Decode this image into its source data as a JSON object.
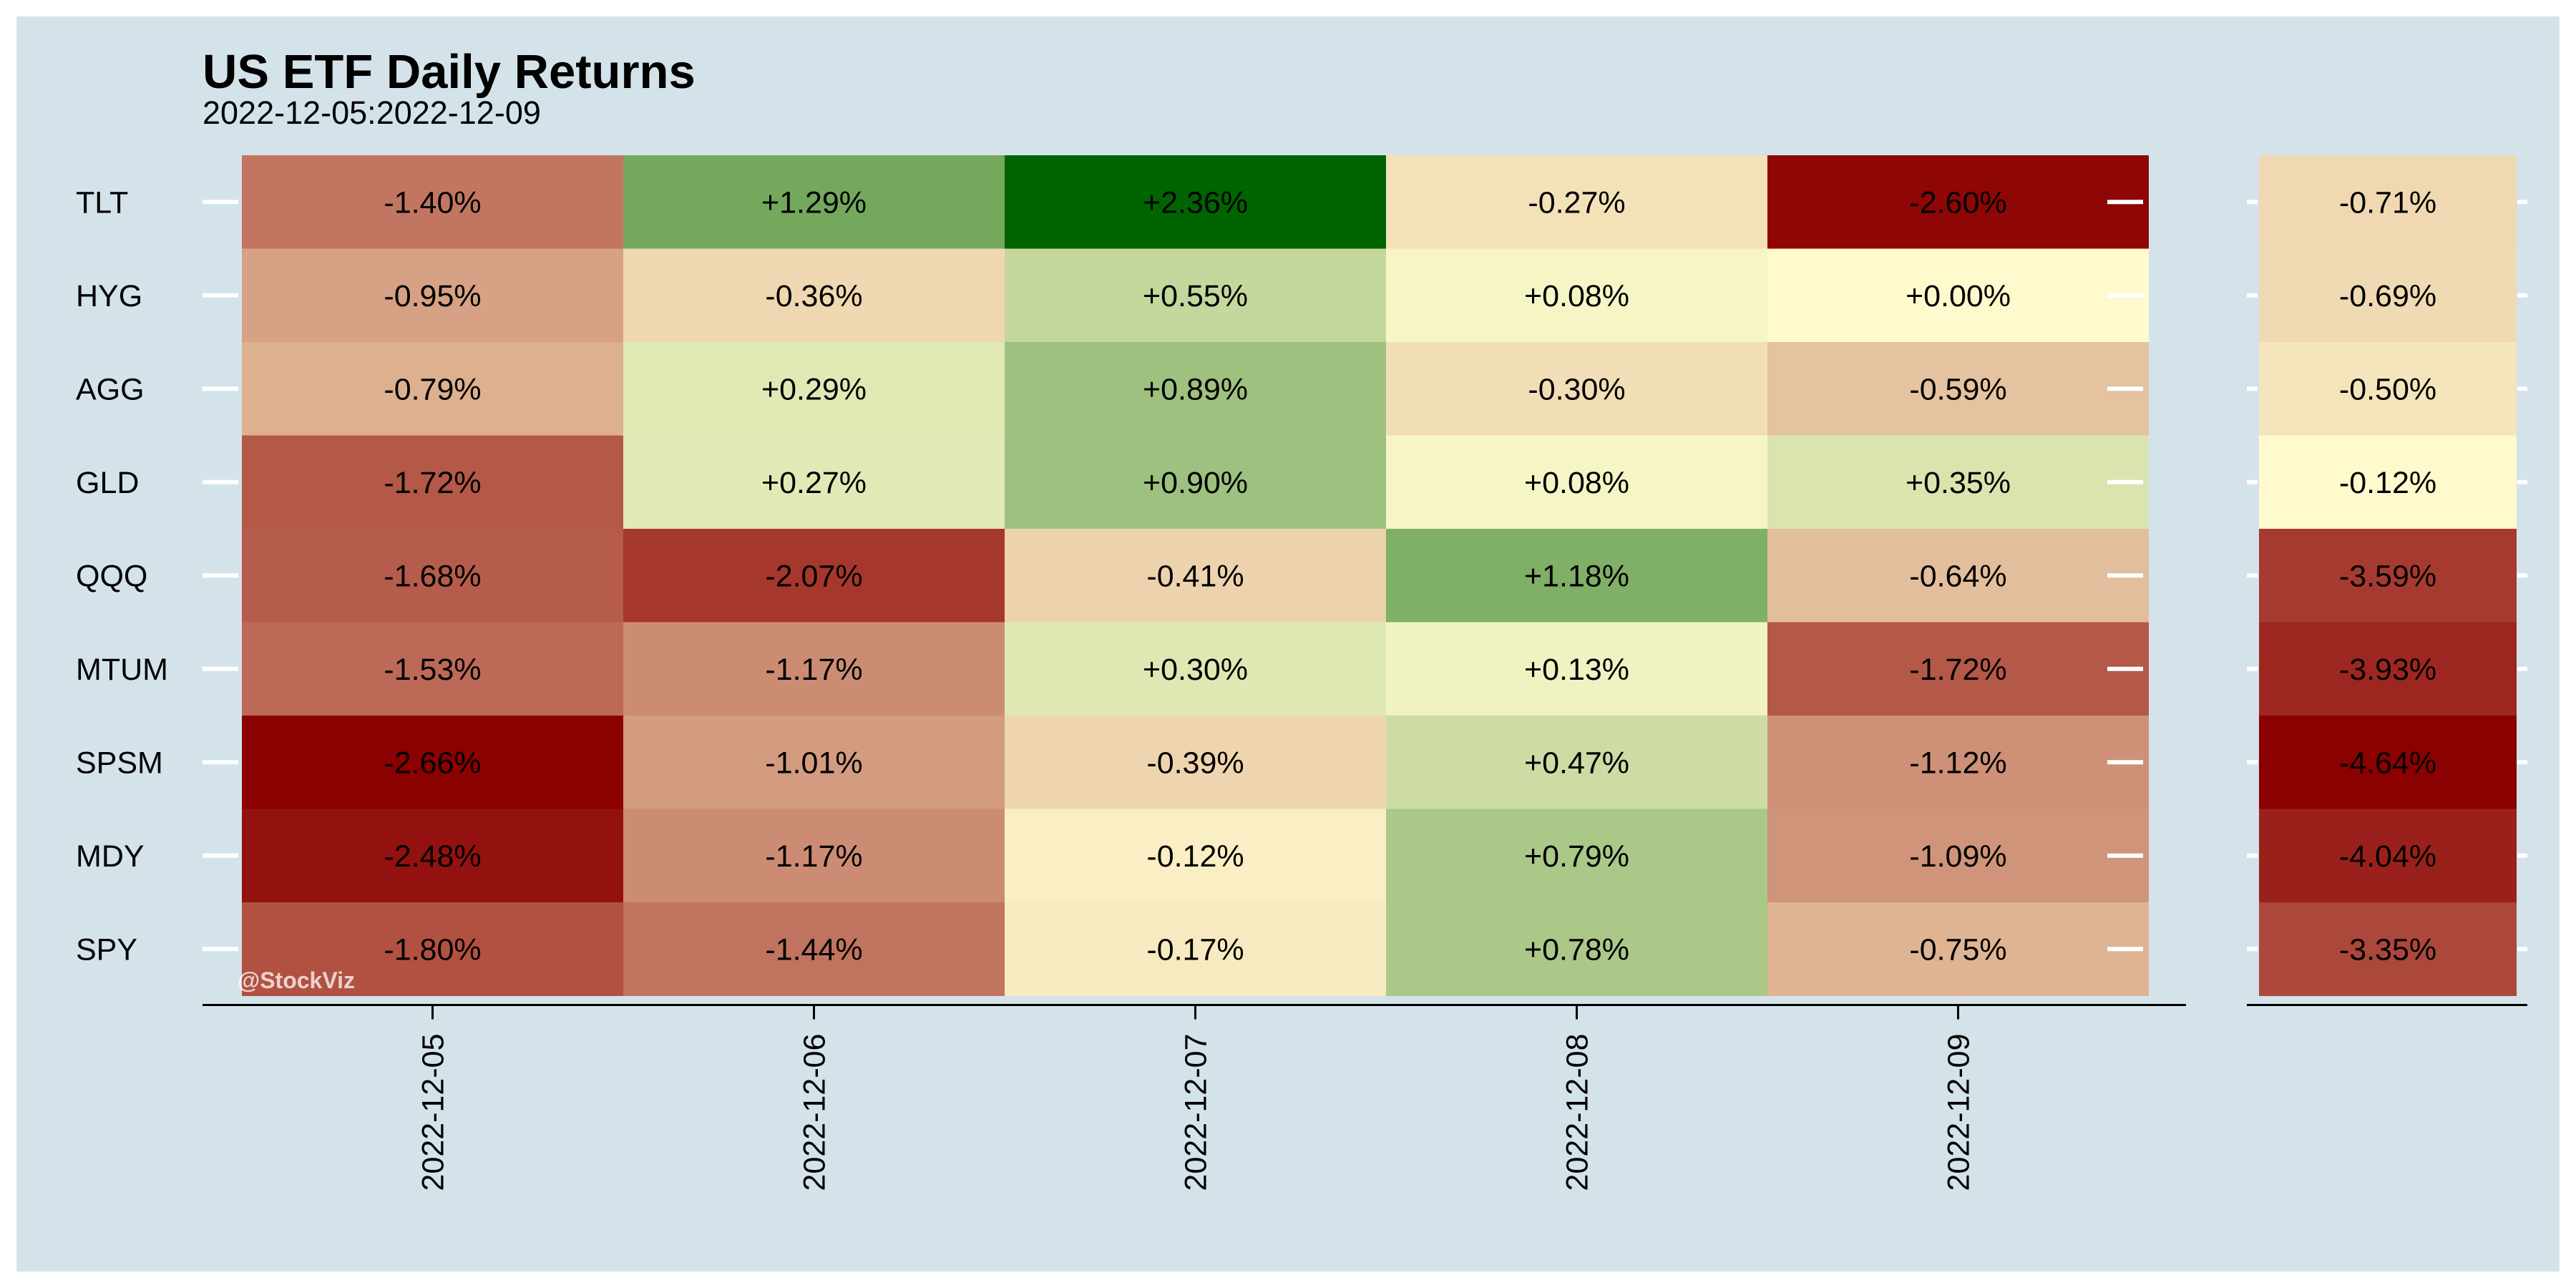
{
  "title": "US ETF Daily Returns",
  "subtitle": "2022-12-05:2022-12-09",
  "watermark": "@StockViz",
  "colors": {
    "background": "#d4e3ea",
    "negative_extreme": "#8b0000",
    "neutral": "#fffacd",
    "positive_extreme": "#006400",
    "axis": "#000000",
    "tick": "#ffffff"
  },
  "chart_data": [
    {
      "type": "heatmap",
      "title": "US ETF Daily Returns",
      "subtitle": "2022-12-05:2022-12-09",
      "xlabel": "",
      "ylabel": "",
      "x": [
        "2022-12-05",
        "2022-12-06",
        "2022-12-07",
        "2022-12-08",
        "2022-12-09"
      ],
      "y": [
        "TLT",
        "HYG",
        "AGG",
        "GLD",
        "QQQ",
        "MTUM",
        "SPSM",
        "MDY",
        "SPY"
      ],
      "values": [
        [
          -1.4,
          1.29,
          2.36,
          -0.27,
          -2.6
        ],
        [
          -0.95,
          -0.36,
          0.55,
          0.08,
          0.0
        ],
        [
          -0.79,
          0.29,
          0.89,
          -0.3,
          -0.59
        ],
        [
          -1.72,
          0.27,
          0.9,
          0.08,
          0.35
        ],
        [
          -1.68,
          -2.07,
          -0.41,
          1.18,
          -0.64
        ],
        [
          -1.53,
          -1.17,
          0.3,
          0.13,
          -1.72
        ],
        [
          -2.66,
          -1.01,
          -0.39,
          0.47,
          -1.12
        ],
        [
          -2.48,
          -1.17,
          -0.12,
          0.79,
          -1.09
        ],
        [
          -1.8,
          -1.44,
          -0.17,
          0.78,
          -0.75
        ]
      ],
      "labels": [
        [
          "-1.40%",
          "+1.29%",
          "+2.36%",
          "-0.27%",
          "-2.60%"
        ],
        [
          "-0.95%",
          "-0.36%",
          "+0.55%",
          "+0.08%",
          "+0.00%"
        ],
        [
          "-0.79%",
          "+0.29%",
          "+0.89%",
          "-0.30%",
          "-0.59%"
        ],
        [
          "-1.72%",
          "+0.27%",
          "+0.90%",
          "+0.08%",
          "+0.35%"
        ],
        [
          "-1.68%",
          "-2.07%",
          "-0.41%",
          "+1.18%",
          "-0.64%"
        ],
        [
          "-1.53%",
          "-1.17%",
          "+0.30%",
          "+0.13%",
          "-1.72%"
        ],
        [
          "-2.66%",
          "-1.01%",
          "-0.39%",
          "+0.47%",
          "-1.12%"
        ],
        [
          "-2.48%",
          "-1.17%",
          "-0.12%",
          "+0.79%",
          "-1.09%"
        ],
        [
          "-1.80%",
          "-1.44%",
          "-0.17%",
          "+0.78%",
          "-0.75%"
        ]
      ],
      "color_range": [
        -2.66,
        2.36
      ],
      "legend": "none"
    },
    {
      "type": "heatmap",
      "x": [],
      "y": [
        "TLT",
        "HYG",
        "AGG",
        "GLD",
        "QQQ",
        "MTUM",
        "SPSM",
        "MDY",
        "SPY"
      ],
      "values": [
        -0.71,
        -0.69,
        -0.5,
        -0.12,
        -3.59,
        -3.93,
        -4.64,
        -4.04,
        -3.35
      ],
      "labels": [
        "-0.71%",
        "-0.69%",
        "-0.50%",
        "-0.12%",
        "-3.59%",
        "-3.93%",
        "-4.64%",
        "-4.04%",
        "-3.35%"
      ],
      "color_range": [
        -4.64,
        -0.12
      ],
      "legend": "none"
    }
  ]
}
